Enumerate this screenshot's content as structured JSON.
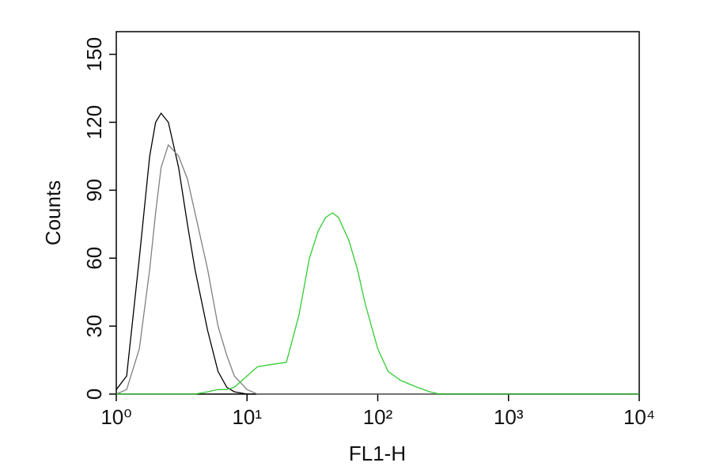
{
  "chart_data": {
    "type": "line",
    "x_label": "FL1-H",
    "y_label": "Counts",
    "xscale": "log",
    "xlim": [
      1,
      10000
    ],
    "xticks": [
      {
        "value": 1,
        "label": "10⁰"
      },
      {
        "value": 10,
        "label": "10¹"
      },
      {
        "value": 100,
        "label": "10²"
      },
      {
        "value": 1000,
        "label": "10³"
      },
      {
        "value": 10000,
        "label": "10⁴"
      }
    ],
    "ylim": [
      0,
      160
    ],
    "yticks": [
      0,
      30,
      60,
      90,
      120,
      150
    ],
    "x": [
      1,
      1.2,
      1.5,
      1.8,
      2,
      2.2,
      2.5,
      3,
      3.5,
      4,
      5,
      6,
      7,
      8,
      10,
      12,
      15,
      20,
      25,
      30,
      35,
      40,
      45,
      50,
      60,
      70,
      80,
      100,
      120,
      150,
      200,
      250,
      300,
      500,
      1000,
      10000
    ],
    "series": [
      {
        "color": "#000000",
        "values": [
          2,
          8,
          60,
          105,
          120,
          124,
          120,
          100,
          75,
          55,
          28,
          10,
          3,
          1,
          0,
          0,
          0,
          0,
          0,
          0,
          0,
          0,
          0,
          0,
          0,
          0,
          0,
          0,
          0,
          0,
          0,
          0,
          0,
          0,
          0,
          0
        ]
      },
      {
        "color": "#808080",
        "values": [
          0,
          2,
          20,
          55,
          80,
          100,
          110,
          105,
          95,
          80,
          55,
          30,
          17,
          8,
          2,
          0,
          0,
          0,
          0,
          0,
          0,
          0,
          0,
          0,
          0,
          0,
          0,
          0,
          0,
          0,
          0,
          0,
          0,
          0,
          0,
          0
        ]
      },
      {
        "color": "#33cc33",
        "values": [
          0,
          0,
          0,
          0,
          0,
          0,
          0,
          0,
          0,
          0,
          1,
          2,
          2,
          3,
          8,
          12,
          13,
          14,
          35,
          60,
          72,
          78,
          80,
          78,
          68,
          55,
          40,
          20,
          10,
          6,
          3,
          1,
          0,
          0,
          0,
          0
        ]
      }
    ]
  }
}
